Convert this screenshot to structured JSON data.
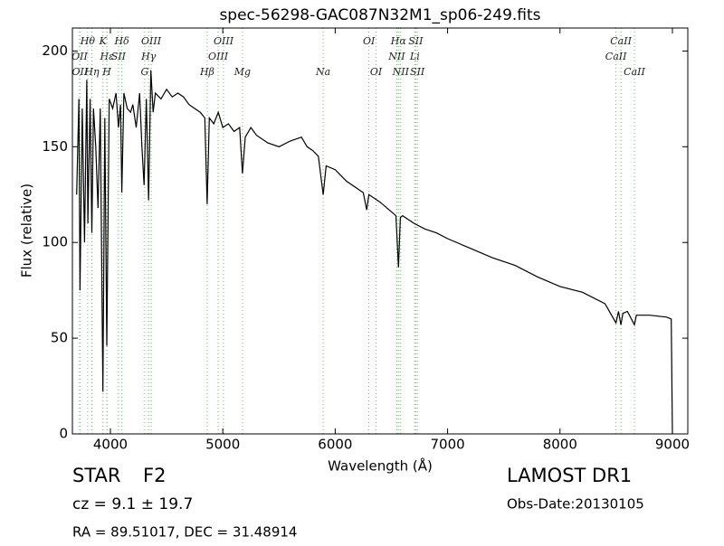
{
  "chart_data": {
    "type": "line",
    "title": "spec-56298-GAC087N32M1_sp06-249.fits",
    "x_label": "Wavelength (Å)",
    "y_label": "Flux (relative)",
    "xlim": [
      3662,
      9137
    ],
    "ylim": [
      0,
      212
    ],
    "xticks": [
      4000,
      5000,
      6000,
      7000,
      8000,
      9000
    ],
    "yticks": [
      0,
      50,
      100,
      150,
      200
    ],
    "color": "#000000",
    "line_color": "#66bb66",
    "x": [
      3700,
      3720,
      3730,
      3750,
      3770,
      3790,
      3800,
      3820,
      3835,
      3850,
      3870,
      3890,
      3910,
      3933,
      3950,
      3968,
      3990,
      4020,
      4050,
      4072,
      4090,
      4102,
      4120,
      4150,
      4180,
      4200,
      4230,
      4260,
      4280,
      4300,
      4320,
      4340,
      4360,
      4380,
      4400,
      4450,
      4500,
      4550,
      4600,
      4650,
      4700,
      4750,
      4800,
      4840,
      4861,
      4880,
      4920,
      4960,
      5000,
      5050,
      5100,
      5150,
      5175,
      5200,
      5250,
      5300,
      5400,
      5500,
      5600,
      5700,
      5750,
      5800,
      5850,
      5893,
      5920,
      6000,
      6100,
      6200,
      6250,
      6280,
      6300,
      6400,
      6500,
      6540,
      6563,
      6580,
      6600,
      6700,
      6800,
      6900,
      7000,
      7200,
      7400,
      7600,
      7800,
      8000,
      8200,
      8400,
      8498,
      8520,
      8542,
      8560,
      8600,
      8662,
      8680,
      8800,
      8950,
      8990,
      9000
    ],
    "values": [
      125,
      175,
      75,
      170,
      100,
      185,
      110,
      175,
      105,
      170,
      150,
      118,
      170,
      22,
      165,
      46,
      175,
      170,
      178,
      160,
      172,
      126,
      178,
      170,
      168,
      172,
      160,
      178,
      150,
      130,
      175,
      122,
      190,
      168,
      178,
      175,
      180,
      176,
      178,
      176,
      172,
      170,
      168,
      165,
      120,
      165,
      162,
      168,
      160,
      162,
      158,
      160,
      136,
      155,
      160,
      156,
      152,
      150,
      153,
      155,
      150,
      148,
      145,
      125,
      140,
      138,
      132,
      128,
      126,
      117,
      125,
      121,
      116,
      114,
      87,
      113,
      114,
      110,
      107,
      105,
      102,
      97,
      92,
      88,
      82,
      77,
      74,
      68,
      58,
      64,
      57,
      63,
      64,
      57,
      62,
      62,
      61,
      60,
      0
    ],
    "line_labels": [
      [
        {
          "label": "Hθ",
          "wavelength": 3798
        },
        {
          "label": "K",
          "wavelength": 3934
        },
        {
          "label": "Hδ",
          "wavelength": 4102
        },
        {
          "label": "OIII",
          "wavelength": 4363
        },
        {
          "label": "OIII",
          "wavelength": 5007
        },
        {
          "label": "OI",
          "wavelength": 6300
        },
        {
          "label": "Hα",
          "wavelength": 6563
        },
        {
          "label": "SII",
          "wavelength": 6716
        },
        {
          "label": "CaII",
          "wavelength": 8542
        }
      ],
      [
        {
          "label": "OII",
          "wavelength": 3726
        },
        {
          "label": "Hε",
          "wavelength": 3970
        },
        {
          "label": "SII",
          "wavelength": 4072
        },
        {
          "label": "Hγ",
          "wavelength": 4340
        },
        {
          "label": "OIII",
          "wavelength": 4959
        },
        {
          "label": "NII",
          "wavelength": 6548
        },
        {
          "label": "Li",
          "wavelength": 6708
        },
        {
          "label": "CaII",
          "wavelength": 8498
        }
      ],
      [
        {
          "label": "OII",
          "wavelength": 3729
        },
        {
          "label": "Hη",
          "wavelength": 3835
        },
        {
          "label": "H",
          "wavelength": 3968
        },
        {
          "label": "G",
          "wavelength": 4305
        },
        {
          "label": "Hβ",
          "wavelength": 4861
        },
        {
          "label": "Mg",
          "wavelength": 5175
        },
        {
          "label": "Na",
          "wavelength": 5893
        },
        {
          "label": "OI",
          "wavelength": 6364
        },
        {
          "label": "NII",
          "wavelength": 6583
        },
        {
          "label": "SII",
          "wavelength": 6731
        },
        {
          "label": "CaII",
          "wavelength": 8662
        }
      ]
    ]
  },
  "footer": {
    "object_class": "STAR",
    "subclass": "F2",
    "cz": "cz = 9.1 ± 19.7",
    "position": "RA = 89.51017, DEC = 31.48914",
    "survey": "LAMOST DR1",
    "obs_date": "Obs-Date:20130105"
  }
}
